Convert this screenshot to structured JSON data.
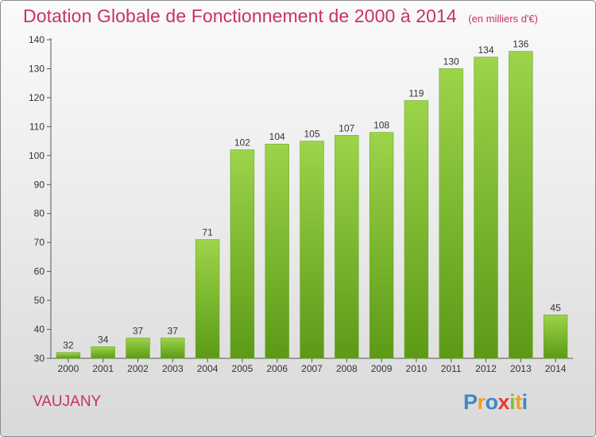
{
  "header": {
    "title": "Dotation Globale de Fonctionnement de 2000 à 2014",
    "unit": "(en milliers d'€)"
  },
  "footer": {
    "location": "VAUJANY",
    "brand": [
      "P",
      "r",
      "o",
      "x",
      "i",
      "t",
      "i"
    ]
  },
  "colors": {
    "title": "#c8306a",
    "bar_top": "#9cd44a",
    "bar_bottom": "#5c9a16",
    "brand": [
      "#3f88c5",
      "#f0a020",
      "#3f88c5",
      "#e23b3b",
      "#7ac143",
      "#f0a020",
      "#3f88c5"
    ]
  },
  "chart_data": {
    "type": "bar",
    "categories": [
      "2000",
      "2001",
      "2002",
      "2003",
      "2004",
      "2005",
      "2006",
      "2007",
      "2008",
      "2009",
      "2010",
      "2011",
      "2012",
      "2013",
      "2014"
    ],
    "values": [
      32,
      34,
      37,
      37,
      71,
      102,
      104,
      105,
      107,
      108,
      119,
      130,
      134,
      136,
      45
    ],
    "ylim": [
      30,
      140
    ],
    "yticks": [
      30,
      40,
      50,
      60,
      70,
      80,
      90,
      100,
      110,
      120,
      130,
      140
    ],
    "grid": false,
    "data_labels": true
  }
}
